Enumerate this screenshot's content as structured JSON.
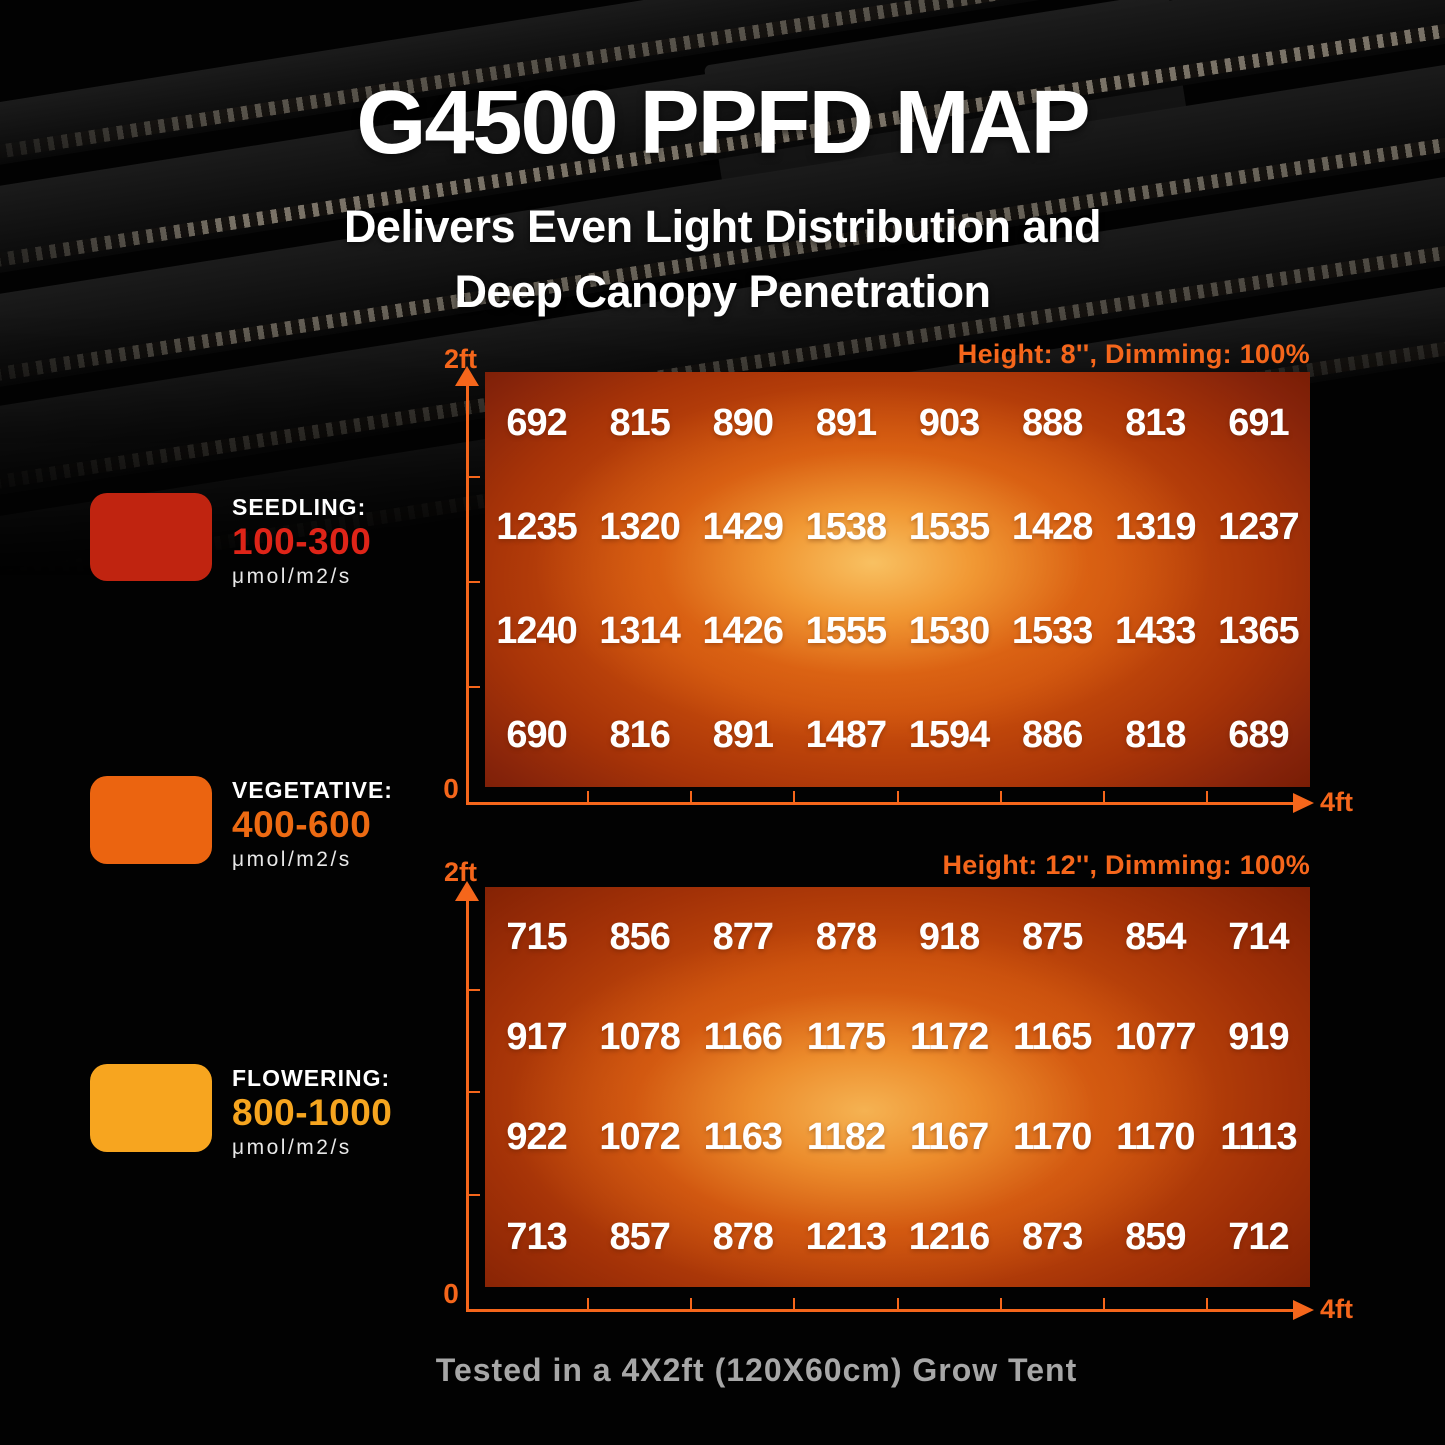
{
  "header": {
    "title": "G4500 PPFD MAP",
    "subtitle_line1": "Delivers Even Light Distribution and",
    "subtitle_line2": "Deep Canopy Penetration"
  },
  "legend": {
    "items": [
      {
        "label": "SEEDLING:",
        "range": "100-300",
        "unit": "μmol/m2/s",
        "swatch_color": "#C02410",
        "range_color": "#DE2418"
      },
      {
        "label": "VEGETATIVE:",
        "range": "400-600",
        "unit": "μmol/m2/s",
        "swatch_color": "#EB6410",
        "range_color": "#ED6A12"
      },
      {
        "label": "FLOWERING:",
        "range": "800-1000",
        "unit": "μmol/m2/s",
        "swatch_color": "#F7A51F",
        "range_color": "#F6A51F"
      }
    ]
  },
  "charts": [
    {
      "annotation": "Height: 8'', Dimming: 100%",
      "y_axis_top_label": "2ft",
      "origin_label": "0",
      "x_axis_end_label": "4ft"
    },
    {
      "annotation": "Height: 12'', Dimming: 100%",
      "y_axis_top_label": "2ft",
      "origin_label": "0",
      "x_axis_end_label": "4ft"
    }
  ],
  "footer": {
    "note": "Tested in a 4X2ft (120X60cm) Grow Tent"
  },
  "colors": {
    "accent": "#F5661B",
    "heatmap_edge": "#7A1D03",
    "heatmap_mid": "#CB4F0C",
    "heatmap_hotspot": "#F9C364",
    "footer_text": "#B5B5B5"
  },
  "chart_data": [
    {
      "type": "heatmap",
      "title": "Height: 8'', Dimming: 100%",
      "unit": "μmol/m2/s",
      "x_range_ft": [
        0,
        4
      ],
      "y_range_ft": [
        0,
        2
      ],
      "x_axis_label": "4ft",
      "y_axis_label": "2ft",
      "row_order": "top-to-bottom (2ft side first)",
      "values": [
        [
          692,
          815,
          890,
          891,
          903,
          888,
          813,
          691
        ],
        [
          1235,
          1320,
          1429,
          1538,
          1535,
          1428,
          1319,
          1237
        ],
        [
          1240,
          1314,
          1426,
          1555,
          1530,
          1533,
          1433,
          1365
        ],
        [
          690,
          816,
          891,
          1487,
          1594,
          886,
          818,
          689
        ]
      ]
    },
    {
      "type": "heatmap",
      "title": "Height: 12'', Dimming: 100%",
      "unit": "μmol/m2/s",
      "x_range_ft": [
        0,
        4
      ],
      "y_range_ft": [
        0,
        2
      ],
      "x_axis_label": "4ft",
      "y_axis_label": "2ft",
      "row_order": "top-to-bottom (2ft side first)",
      "values": [
        [
          715,
          856,
          877,
          878,
          918,
          875,
          854,
          714
        ],
        [
          917,
          1078,
          1166,
          1175,
          1172,
          1165,
          1077,
          919
        ],
        [
          922,
          1072,
          1163,
          1182,
          1167,
          1170,
          1170,
          1113
        ],
        [
          713,
          857,
          878,
          1213,
          1216,
          873,
          859,
          712
        ]
      ]
    }
  ]
}
